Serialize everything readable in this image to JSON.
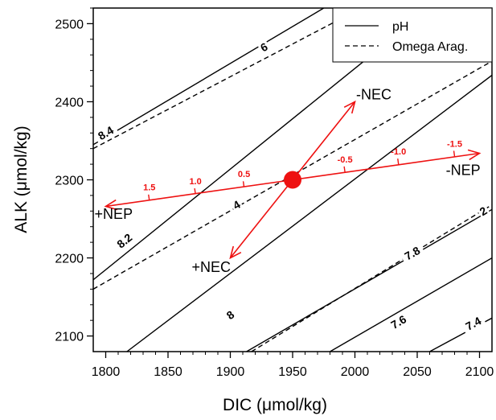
{
  "chart_data": {
    "type": "line",
    "title": "",
    "xlabel": "DIC (μmol/kg)",
    "ylabel": "ALK (μmol/kg)",
    "xlim": [
      1790,
      2110
    ],
    "ylim": [
      2080,
      2520
    ],
    "xticks": [
      1800,
      1850,
      1900,
      1950,
      2000,
      2050,
      2100
    ],
    "yticks": [
      2100,
      2200,
      2300,
      2400,
      2500
    ],
    "grid": false,
    "legend": {
      "position": "top-right",
      "entries": [
        {
          "label": "pH",
          "style": "solid"
        },
        {
          "label": "Omega Arag.",
          "style": "dashed"
        }
      ]
    },
    "colors": {
      "contour": "#000000",
      "vector": "#ee1111"
    },
    "series": [
      {
        "name": "pH",
        "style": "solid",
        "label": "8.4",
        "label_at": [
          1800,
          2360
        ],
        "points": [
          [
            1790,
            2345
          ],
          [
            1975,
            2520
          ]
        ]
      },
      {
        "name": "pH",
        "style": "solid",
        "label": "8.2",
        "label_at": [
          1815,
          2222
        ],
        "points": [
          [
            1790,
            2172
          ],
          [
            2060,
            2520
          ]
        ]
      },
      {
        "name": "pH",
        "style": "solid",
        "label": "8",
        "label_at": [
          1900,
          2127
        ],
        "points": [
          [
            1817,
            2080
          ],
          [
            2110,
            2434
          ]
        ]
      },
      {
        "name": "pH",
        "style": "solid",
        "label": "7.8",
        "label_at": [
          2046,
          2206
        ],
        "points": [
          [
            1913,
            2080
          ],
          [
            2110,
            2262
          ]
        ]
      },
      {
        "name": "pH",
        "style": "solid",
        "label": "7.6",
        "label_at": [
          2035,
          2118
        ],
        "points": [
          [
            1980,
            2080
          ],
          [
            2110,
            2200
          ]
        ]
      },
      {
        "name": "pH",
        "style": "solid",
        "label": "7.4",
        "label_at": [
          2095,
          2116
        ],
        "points": [
          [
            2060,
            2080
          ],
          [
            2110,
            2123
          ]
        ]
      },
      {
        "name": "Omega Arag.",
        "style": "dashed",
        "label": "6",
        "label_at": [
          1927,
          2470
        ],
        "points": [
          [
            1790,
            2340
          ],
          [
            2005,
            2520
          ]
        ]
      },
      {
        "name": "Omega Arag.",
        "style": "dashed",
        "label": "4",
        "label_at": [
          1905,
          2268
        ],
        "points": [
          [
            1790,
            2160
          ],
          [
            2110,
            2452
          ]
        ]
      },
      {
        "name": "Omega Arag.",
        "style": "dashed",
        "label": "2",
        "label_at": [
          2103,
          2260
        ],
        "points": [
          [
            1917,
            2080
          ],
          [
            2110,
            2268
          ]
        ]
      }
    ],
    "vectors": {
      "origin": [
        1950,
        2300
      ],
      "items": [
        {
          "label": "-NEC",
          "end": [
            2000,
            2400
          ],
          "label_at": [
            2001,
            2403
          ],
          "ticks": []
        },
        {
          "label": "+NEC",
          "end": [
            1900,
            2200
          ],
          "label_at": [
            1869,
            2182
          ],
          "ticks": []
        },
        {
          "label": "-NEP",
          "end": [
            2100,
            2334
          ],
          "label_at": [
            2073,
            2306
          ],
          "ticks": [
            {
              "label": "-0.5",
              "at": [
                1992,
                2310
              ]
            },
            {
              "label": "-1.0",
              "at": [
                2035,
                2320
              ]
            },
            {
              "label": "-1.5",
              "at": [
                2080,
                2330
              ]
            }
          ]
        },
        {
          "label": "+NEP",
          "end": [
            1800,
            2266
          ],
          "label_at": [
            1791,
            2250
          ],
          "ticks": [
            {
              "label": "0.5",
              "at": [
                1911,
                2291
              ]
            },
            {
              "label": "1.0",
              "at": [
                1872,
                2282
              ]
            },
            {
              "label": "1.5",
              "at": [
                1835,
                2274
              ]
            }
          ]
        }
      ]
    }
  }
}
